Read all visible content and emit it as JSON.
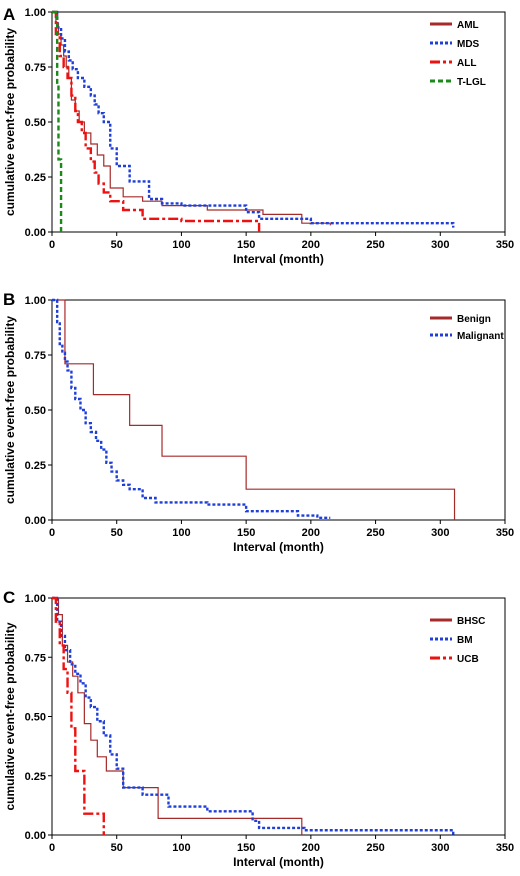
{
  "chart_data": [
    {
      "panel": "A",
      "type": "line",
      "step": true,
      "xlabel": "Interval (month)",
      "ylabel": "cumulative event-free probability",
      "xlim": [
        0,
        350
      ],
      "ylim": [
        0,
        1
      ],
      "xticks": [
        "0",
        "50",
        "100",
        "150",
        "200",
        "250",
        "300",
        "350"
      ],
      "yticks": [
        "0.00",
        "0.25",
        "0.50",
        "0.75",
        "1.00"
      ],
      "legend_position": "top-right",
      "series": [
        {
          "name": "AML",
          "color": "#a52a2a",
          "dash": "solid",
          "x": [
            0,
            3,
            5,
            7,
            9,
            11,
            13,
            15,
            18,
            21,
            25,
            30,
            35,
            40,
            45,
            55,
            70,
            85,
            120,
            163,
            193,
            215
          ],
          "y": [
            1.0,
            0.95,
            0.9,
            0.85,
            0.8,
            0.75,
            0.7,
            0.6,
            0.55,
            0.5,
            0.45,
            0.4,
            0.35,
            0.3,
            0.2,
            0.16,
            0.14,
            0.12,
            0.1,
            0.08,
            0.04,
            0.03
          ]
        },
        {
          "name": "MDS",
          "color": "#1f3fd9",
          "dash": "dot",
          "x": [
            0,
            4,
            7,
            10,
            13,
            16,
            20,
            25,
            30,
            33,
            36,
            40,
            45,
            50,
            60,
            75,
            85,
            100,
            150,
            160,
            200,
            310
          ],
          "y": [
            1.0,
            0.93,
            0.88,
            0.82,
            0.78,
            0.74,
            0.7,
            0.66,
            0.62,
            0.58,
            0.54,
            0.5,
            0.38,
            0.3,
            0.23,
            0.15,
            0.13,
            0.12,
            0.09,
            0.06,
            0.04,
            0.02
          ]
        },
        {
          "name": "ALL",
          "color": "#ee1111",
          "dash": "dashdot",
          "x": [
            0,
            3,
            6,
            9,
            12,
            15,
            18,
            20,
            23,
            26,
            30,
            33,
            36,
            40,
            45,
            55,
            70,
            100,
            160
          ],
          "y": [
            1.0,
            0.9,
            0.8,
            0.75,
            0.7,
            0.62,
            0.55,
            0.5,
            0.45,
            0.38,
            0.32,
            0.27,
            0.22,
            0.18,
            0.14,
            0.1,
            0.06,
            0.05,
            0.0
          ]
        },
        {
          "name": "T-LGL",
          "color": "#1a8a1a",
          "dash": "dash",
          "x": [
            0,
            4,
            5,
            7
          ],
          "y": [
            1.0,
            0.67,
            0.33,
            0.0
          ]
        }
      ]
    },
    {
      "panel": "B",
      "type": "line",
      "step": true,
      "xlabel": "Interval (month)",
      "ylabel": "cumulative event-free probability",
      "xlim": [
        0,
        350
      ],
      "ylim": [
        0,
        1
      ],
      "xticks": [
        "0",
        "50",
        "100",
        "150",
        "200",
        "250",
        "300",
        "350"
      ],
      "yticks": [
        "0.00",
        "0.25",
        "0.50",
        "0.75",
        "1.00"
      ],
      "legend_position": "top-right",
      "series": [
        {
          "name": "Benign",
          "color": "#a52a2a",
          "dash": "solid",
          "x": [
            0,
            10,
            32,
            60,
            85,
            150,
            311
          ],
          "y": [
            1.0,
            0.71,
            0.57,
            0.43,
            0.29,
            0.14,
            0.0
          ]
        },
        {
          "name": "Malignant",
          "color": "#1f3fd9",
          "dash": "dot",
          "x": [
            0,
            4,
            6,
            8,
            10,
            12,
            15,
            18,
            22,
            26,
            30,
            34,
            38,
            42,
            46,
            50,
            55,
            60,
            70,
            80,
            120,
            150,
            190,
            205,
            215
          ],
          "y": [
            1.0,
            0.9,
            0.8,
            0.76,
            0.72,
            0.68,
            0.6,
            0.55,
            0.5,
            0.44,
            0.4,
            0.36,
            0.32,
            0.26,
            0.22,
            0.18,
            0.16,
            0.14,
            0.1,
            0.08,
            0.07,
            0.04,
            0.02,
            0.01,
            0.01
          ]
        }
      ]
    },
    {
      "panel": "C",
      "type": "line",
      "step": true,
      "xlabel": "Interval (month)",
      "ylabel": "cumulative event-free probability",
      "xlim": [
        0,
        350
      ],
      "ylim": [
        0,
        1
      ],
      "xticks": [
        "0",
        "50",
        "100",
        "150",
        "200",
        "250",
        "300",
        "350"
      ],
      "yticks": [
        "0.00",
        "0.25",
        "0.50",
        "0.75",
        "1.00"
      ],
      "legend_position": "top-right",
      "series": [
        {
          "name": "BHSC",
          "color": "#a52a2a",
          "dash": "solid",
          "x": [
            0,
            5,
            8,
            12,
            16,
            20,
            25,
            30,
            35,
            42,
            55,
            82,
            193
          ],
          "y": [
            1.0,
            0.93,
            0.8,
            0.73,
            0.67,
            0.6,
            0.47,
            0.4,
            0.33,
            0.27,
            0.2,
            0.07,
            0.0
          ]
        },
        {
          "name": "BM",
          "color": "#1f3fd9",
          "dash": "dot",
          "x": [
            0,
            4,
            7,
            10,
            14,
            18,
            22,
            26,
            30,
            35,
            40,
            45,
            50,
            55,
            70,
            90,
            120,
            155,
            160,
            195,
            210,
            310
          ],
          "y": [
            1.0,
            0.9,
            0.84,
            0.78,
            0.72,
            0.68,
            0.64,
            0.58,
            0.54,
            0.48,
            0.42,
            0.34,
            0.28,
            0.2,
            0.17,
            0.12,
            0.1,
            0.06,
            0.03,
            0.02,
            0.02,
            0.0
          ]
        },
        {
          "name": "UCB",
          "color": "#ee1111",
          "dash": "dashdot",
          "x": [
            0,
            3,
            6,
            9,
            12,
            15,
            18,
            25,
            38,
            40
          ],
          "y": [
            1.0,
            0.9,
            0.8,
            0.7,
            0.6,
            0.45,
            0.27,
            0.09,
            0.09,
            0.0
          ]
        }
      ]
    }
  ]
}
